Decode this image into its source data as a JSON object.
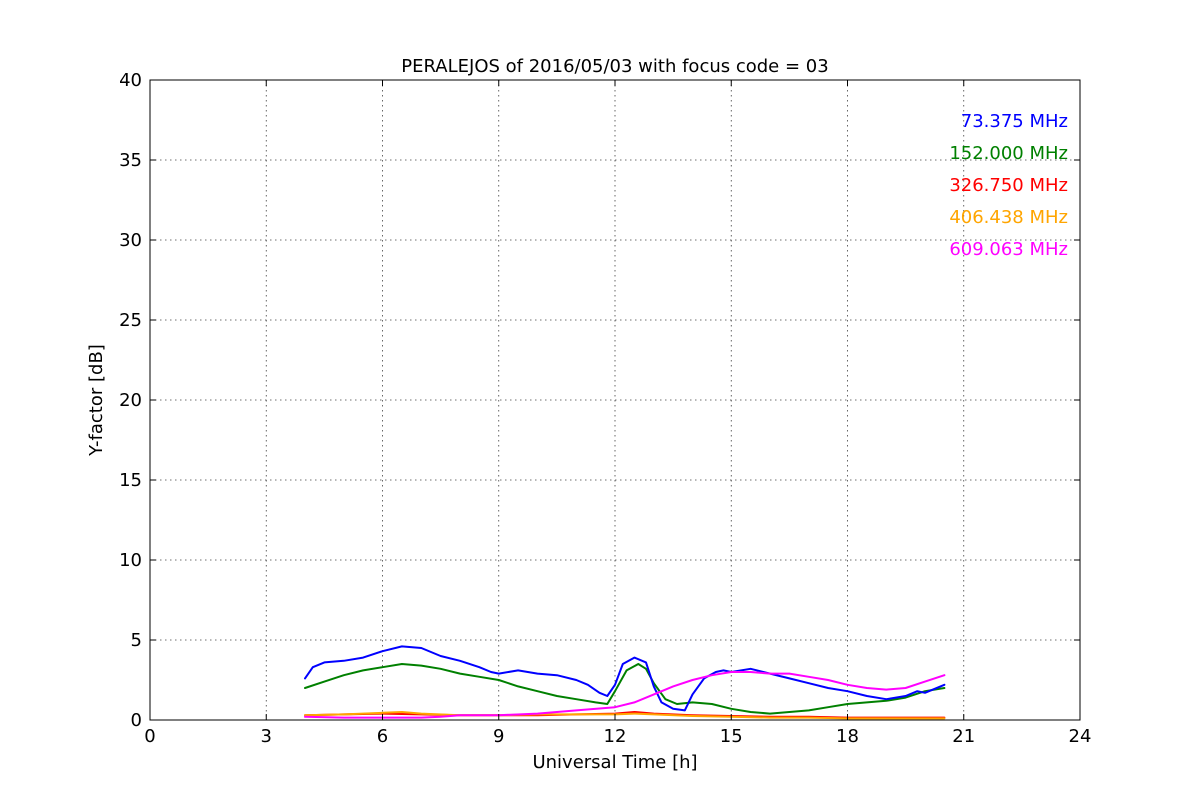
{
  "chart_data": {
    "type": "line",
    "title": "PERALEJOS of 2016/05/03 with focus code = 03",
    "xlabel": "Universal Time [h]",
    "ylabel": "Y-factor [dB]",
    "xlim": [
      0,
      24
    ],
    "ylim": [
      0,
      40
    ],
    "xticks": [
      0,
      3,
      6,
      9,
      12,
      15,
      18,
      21,
      24
    ],
    "xtick_labels": [
      "0",
      "3",
      "6",
      "9",
      "12",
      "15",
      "18",
      "21",
      "24"
    ],
    "yticks": [
      0,
      5,
      10,
      15,
      20,
      25,
      30,
      35,
      40
    ],
    "ytick_labels": [
      "0",
      "5",
      "10",
      "15",
      "20",
      "25",
      "30",
      "35",
      "40"
    ],
    "grid": true,
    "legend_position": "top-right",
    "series": [
      {
        "name": "73.375 MHz",
        "color": "#0000ff",
        "x": [
          4.0,
          4.2,
          4.5,
          5.0,
          5.5,
          6.0,
          6.5,
          7.0,
          7.5,
          8.0,
          8.5,
          8.8,
          9.0,
          9.5,
          10.0,
          10.5,
          11.0,
          11.3,
          11.6,
          11.8,
          12.0,
          12.2,
          12.5,
          12.8,
          13.0,
          13.2,
          13.5,
          13.8,
          14.0,
          14.3,
          14.6,
          14.8,
          15.0,
          15.5,
          16.0,
          16.5,
          17.0,
          17.5,
          18.0,
          18.5,
          19.0,
          19.5,
          19.8,
          20.0,
          20.5
        ],
        "y": [
          2.6,
          3.3,
          3.6,
          3.7,
          3.9,
          4.3,
          4.6,
          4.5,
          4.0,
          3.7,
          3.3,
          3.0,
          2.9,
          3.1,
          2.9,
          2.8,
          2.5,
          2.2,
          1.7,
          1.5,
          2.2,
          3.5,
          3.9,
          3.6,
          2.1,
          1.1,
          0.7,
          0.6,
          1.6,
          2.6,
          3.0,
          3.1,
          3.0,
          3.2,
          2.9,
          2.6,
          2.3,
          2.0,
          1.8,
          1.5,
          1.3,
          1.5,
          1.8,
          1.7,
          2.2
        ]
      },
      {
        "name": "152.000 MHz",
        "color": "#008000",
        "x": [
          4.0,
          4.5,
          5.0,
          5.5,
          6.0,
          6.5,
          7.0,
          7.5,
          8.0,
          8.5,
          9.0,
          9.5,
          10.0,
          10.5,
          11.0,
          11.5,
          11.8,
          12.0,
          12.3,
          12.6,
          12.8,
          13.0,
          13.3,
          13.6,
          14.0,
          14.5,
          15.0,
          15.5,
          16.0,
          16.5,
          17.0,
          17.5,
          18.0,
          18.5,
          19.0,
          19.5,
          20.0,
          20.5
        ],
        "y": [
          2.0,
          2.4,
          2.8,
          3.1,
          3.3,
          3.5,
          3.4,
          3.2,
          2.9,
          2.7,
          2.5,
          2.1,
          1.8,
          1.5,
          1.3,
          1.1,
          1.0,
          1.8,
          3.1,
          3.5,
          3.2,
          2.3,
          1.3,
          1.0,
          1.1,
          1.0,
          0.7,
          0.5,
          0.4,
          0.5,
          0.6,
          0.8,
          1.0,
          1.1,
          1.2,
          1.4,
          1.8,
          2.0
        ]
      },
      {
        "name": "326.750 MHz",
        "color": "#ff0000",
        "x": [
          4.0,
          5.0,
          6.0,
          7.0,
          8.0,
          9.0,
          10.0,
          11.0,
          12.0,
          12.5,
          13.0,
          14.0,
          15.0,
          16.0,
          17.0,
          18.0,
          19.0,
          20.0,
          20.5
        ],
        "y": [
          0.3,
          0.35,
          0.4,
          0.35,
          0.3,
          0.3,
          0.3,
          0.35,
          0.4,
          0.5,
          0.4,
          0.3,
          0.25,
          0.2,
          0.2,
          0.15,
          0.15,
          0.15,
          0.15
        ]
      },
      {
        "name": "406.438 MHz",
        "color": "#ffa500",
        "x": [
          4.0,
          5.0,
          6.0,
          6.5,
          7.0,
          8.0,
          9.0,
          10.0,
          11.0,
          12.0,
          12.5,
          13.0,
          14.0,
          15.0,
          16.0,
          17.0,
          18.0,
          19.0,
          20.0,
          20.5
        ],
        "y": [
          0.3,
          0.35,
          0.45,
          0.5,
          0.4,
          0.3,
          0.3,
          0.35,
          0.35,
          0.35,
          0.4,
          0.35,
          0.25,
          0.2,
          0.15,
          0.15,
          0.1,
          0.1,
          0.1,
          0.1
        ]
      },
      {
        "name": "609.063 MHz",
        "color": "#ff00ff",
        "x": [
          4.0,
          5.0,
          6.0,
          7.0,
          7.5,
          8.0,
          9.0,
          10.0,
          11.0,
          12.0,
          12.5,
          13.0,
          13.5,
          14.0,
          14.5,
          15.0,
          15.5,
          16.0,
          16.5,
          17.0,
          17.5,
          18.0,
          18.5,
          19.0,
          19.5,
          20.0,
          20.5
        ],
        "y": [
          0.2,
          0.15,
          0.15,
          0.15,
          0.2,
          0.3,
          0.3,
          0.4,
          0.6,
          0.8,
          1.1,
          1.6,
          2.1,
          2.5,
          2.8,
          3.0,
          3.0,
          2.9,
          2.9,
          2.7,
          2.5,
          2.2,
          2.0,
          1.9,
          2.0,
          2.4,
          2.8
        ]
      }
    ]
  }
}
